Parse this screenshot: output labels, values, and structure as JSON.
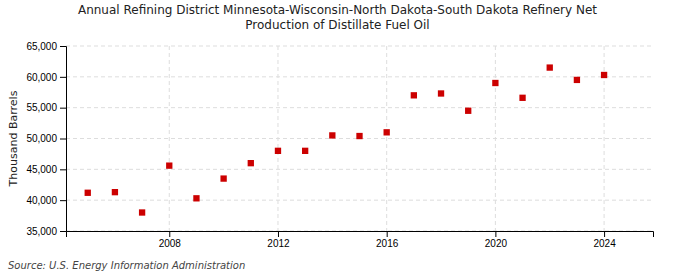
{
  "chart_data": {
    "type": "scatter",
    "title": "Annual Refining District Minnesota-Wisconsin-North Dakota-South Dakota Refinery Net\nProduction of Distillate Fuel Oil",
    "ylabel": "Thousand Barrels",
    "source": "Source: U.S. Energy Information Administration",
    "x": [
      2005,
      2006,
      2007,
      2008,
      2009,
      2010,
      2011,
      2012,
      2013,
      2014,
      2015,
      2016,
      2017,
      2018,
      2019,
      2020,
      2021,
      2022,
      2023,
      2024
    ],
    "values": [
      41200,
      41300,
      38000,
      45600,
      40300,
      43500,
      46000,
      48000,
      48000,
      50500,
      50400,
      51000,
      57000,
      57300,
      54500,
      59000,
      56600,
      61500,
      59500,
      60300
    ],
    "color": "#cc0000",
    "marker": "square",
    "xlim": [
      2004.2,
      2025.8
    ],
    "xticks": [
      2008,
      2012,
      2016,
      2020,
      2024
    ],
    "ylim": [
      35000,
      65000
    ],
    "yticks": [
      {
        "value": 35000,
        "label": "35,000"
      },
      {
        "value": 40000,
        "label": "40,000"
      },
      {
        "value": 45000,
        "label": "45,000"
      },
      {
        "value": 50000,
        "label": "50,000"
      },
      {
        "value": 55000,
        "label": "55,000"
      },
      {
        "value": 60000,
        "label": "60,000"
      },
      {
        "value": 65000,
        "label": "65,000"
      }
    ],
    "grid": true
  }
}
